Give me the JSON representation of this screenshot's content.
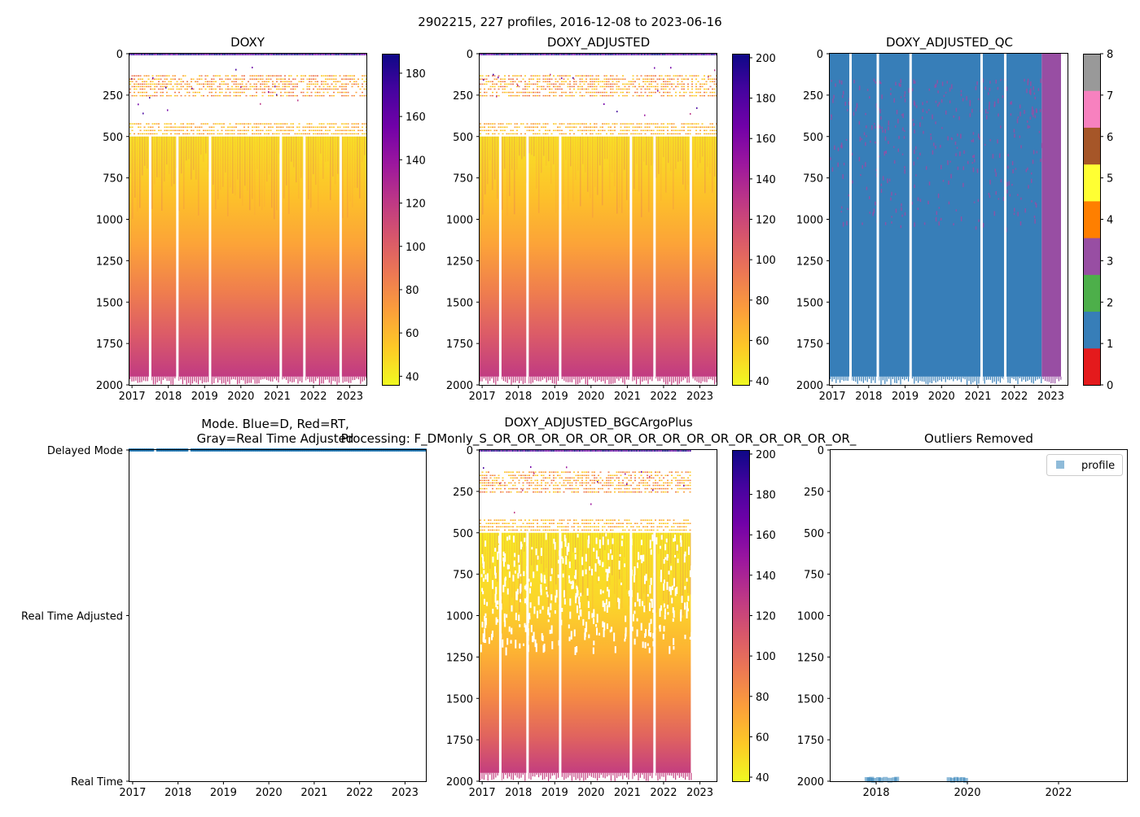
{
  "figure_title": "2902215, 227 profiles, 2016-12-08 to 2023-06-16",
  "colors": {
    "plasma_r": [
      "#f0f921",
      "#fdca26",
      "#fb9f3a",
      "#ed7953",
      "#d8576b",
      "#bd3786",
      "#9c179e",
      "#7201a8",
      "#46039f",
      "#0d0887"
    ],
    "qc": [
      "#e41a1c",
      "#377eb8",
      "#4daf4a",
      "#984ea3",
      "#ff7f00",
      "#ffff33",
      "#a65628",
      "#f781bf",
      "#999999"
    ],
    "mode_dot": "#1f77b4"
  },
  "chart_data": [
    {
      "id": "doxy",
      "type": "heatmap",
      "title": "DOXY",
      "x_ticks": [
        "2017",
        "2018",
        "2019",
        "2020",
        "2021",
        "2022",
        "2023"
      ],
      "xlim": [
        2016.93,
        2023.46
      ],
      "y_ticks": [
        "0",
        "250",
        "500",
        "750",
        "1000",
        "1250",
        "1500",
        "1750",
        "2000"
      ],
      "ylim": [
        2000,
        0
      ],
      "colorbar": {
        "ticks": [
          "40",
          "60",
          "80",
          "100",
          "120",
          "140",
          "160",
          "180"
        ],
        "range": [
          36,
          189
        ]
      },
      "data_extent": [
        2016.93,
        2023.46
      ],
      "gaps": [
        2017.5,
        2018.25,
        2019.15,
        2021.1,
        2021.75,
        2022.75
      ]
    },
    {
      "id": "doxy_adjusted",
      "type": "heatmap",
      "title": "DOXY_ADJUSTED",
      "x_ticks": [
        "2017",
        "2018",
        "2019",
        "2020",
        "2021",
        "2022",
        "2023"
      ],
      "xlim": [
        2016.93,
        2023.46
      ],
      "y_ticks": [
        "0",
        "250",
        "500",
        "750",
        "1000",
        "1250",
        "1500",
        "1750",
        "2000"
      ],
      "ylim": [
        2000,
        0
      ],
      "colorbar": {
        "ticks": [
          "40",
          "60",
          "80",
          "100",
          "120",
          "140",
          "160",
          "180",
          "200"
        ],
        "range": [
          38,
          202
        ]
      },
      "data_extent": [
        2016.93,
        2023.46
      ],
      "gaps": [
        2017.5,
        2018.25,
        2019.15,
        2021.1,
        2021.75,
        2022.75
      ]
    },
    {
      "id": "doxy_adjusted_qc",
      "type": "heatmap",
      "title": "DOXY_ADJUSTED_QC",
      "x_ticks": [
        "2017",
        "2018",
        "2019",
        "2020",
        "2021",
        "2022",
        "2023"
      ],
      "xlim": [
        2016.93,
        2023.46
      ],
      "y_ticks": [
        "0",
        "250",
        "500",
        "750",
        "1000",
        "1250",
        "1500",
        "1750",
        "2000"
      ],
      "ylim": [
        2000,
        0
      ],
      "colorbar": {
        "ticks": [
          "0",
          "1",
          "2",
          "3",
          "4",
          "5",
          "6",
          "7",
          "8"
        ],
        "range": [
          0,
          8
        ]
      },
      "qc_values": {
        "main": 1,
        "late": 3,
        "scatter": 3
      },
      "late_start": 2022.75,
      "gaps": [
        2017.5,
        2018.25,
        2019.15,
        2021.1,
        2021.75
      ]
    },
    {
      "id": "mode",
      "type": "scatter",
      "title_line1": "Mode. Blue=D, Red=RT,",
      "title_line2": "Gray=Real Time Adjusted",
      "x_ticks": [
        "2017",
        "2018",
        "2019",
        "2020",
        "2021",
        "2022",
        "2023"
      ],
      "xlim": [
        2016.93,
        2023.46
      ],
      "y_categories": [
        "Real Time",
        "Real Time Adjusted",
        "Delayed Mode"
      ],
      "points": {
        "category": "Delayed Mode",
        "x_start": 2016.93,
        "x_end": 2023.46
      }
    },
    {
      "id": "bgc",
      "type": "heatmap",
      "title_line1": "DOXY_ADJUSTED_BGCArgoPlus",
      "title_line2": "Processing: F_DMonly_S_OR_OR_OR_OR_OR_OR_OR_OR_OR_OR_OR_OR_OR_OR_OR_",
      "x_ticks": [
        "2017",
        "2018",
        "2019",
        "2020",
        "2021",
        "2022",
        "2023"
      ],
      "xlim": [
        2016.93,
        2023.46
      ],
      "y_ticks": [
        "0",
        "250",
        "500",
        "750",
        "1000",
        "1250",
        "1500",
        "1750",
        "2000"
      ],
      "ylim": [
        2000,
        0
      ],
      "colorbar": {
        "ticks": [
          "40",
          "60",
          "80",
          "100",
          "120",
          "140",
          "160",
          "180",
          "200"
        ],
        "range": [
          38,
          202
        ]
      },
      "data_extent": [
        2016.93,
        2022.75
      ],
      "gaps": [
        2017.5,
        2018.25,
        2019.15,
        2021.1,
        2021.75
      ]
    },
    {
      "id": "outliers",
      "type": "scatter",
      "title": "Outliers Removed",
      "x_ticks": [
        "2018",
        "2020",
        "2022"
      ],
      "xlim": [
        2017.0,
        2023.5
      ],
      "y_ticks": [
        "0",
        "250",
        "500",
        "750",
        "1000",
        "1250",
        "1500",
        "1750",
        "2000"
      ],
      "ylim": [
        2000,
        0
      ],
      "legend": "profile",
      "legend_position": "top-right",
      "points": [
        {
          "x": 2017.8,
          "y": 1990
        },
        {
          "x": 2017.85,
          "y": 1992
        },
        {
          "x": 2017.9,
          "y": 1988
        },
        {
          "x": 2017.95,
          "y": 1995
        },
        {
          "x": 2018.05,
          "y": 1990
        },
        {
          "x": 2018.1,
          "y": 1993
        },
        {
          "x": 2018.2,
          "y": 1989
        },
        {
          "x": 2018.3,
          "y": 1994
        },
        {
          "x": 2018.4,
          "y": 1991
        },
        {
          "x": 2018.45,
          "y": 1988
        },
        {
          "x": 2019.6,
          "y": 1991
        },
        {
          "x": 2019.68,
          "y": 1994
        },
        {
          "x": 2019.75,
          "y": 1989
        },
        {
          "x": 2019.82,
          "y": 1992
        },
        {
          "x": 2019.9,
          "y": 1990
        },
        {
          "x": 2019.96,
          "y": 1995
        }
      ]
    }
  ]
}
